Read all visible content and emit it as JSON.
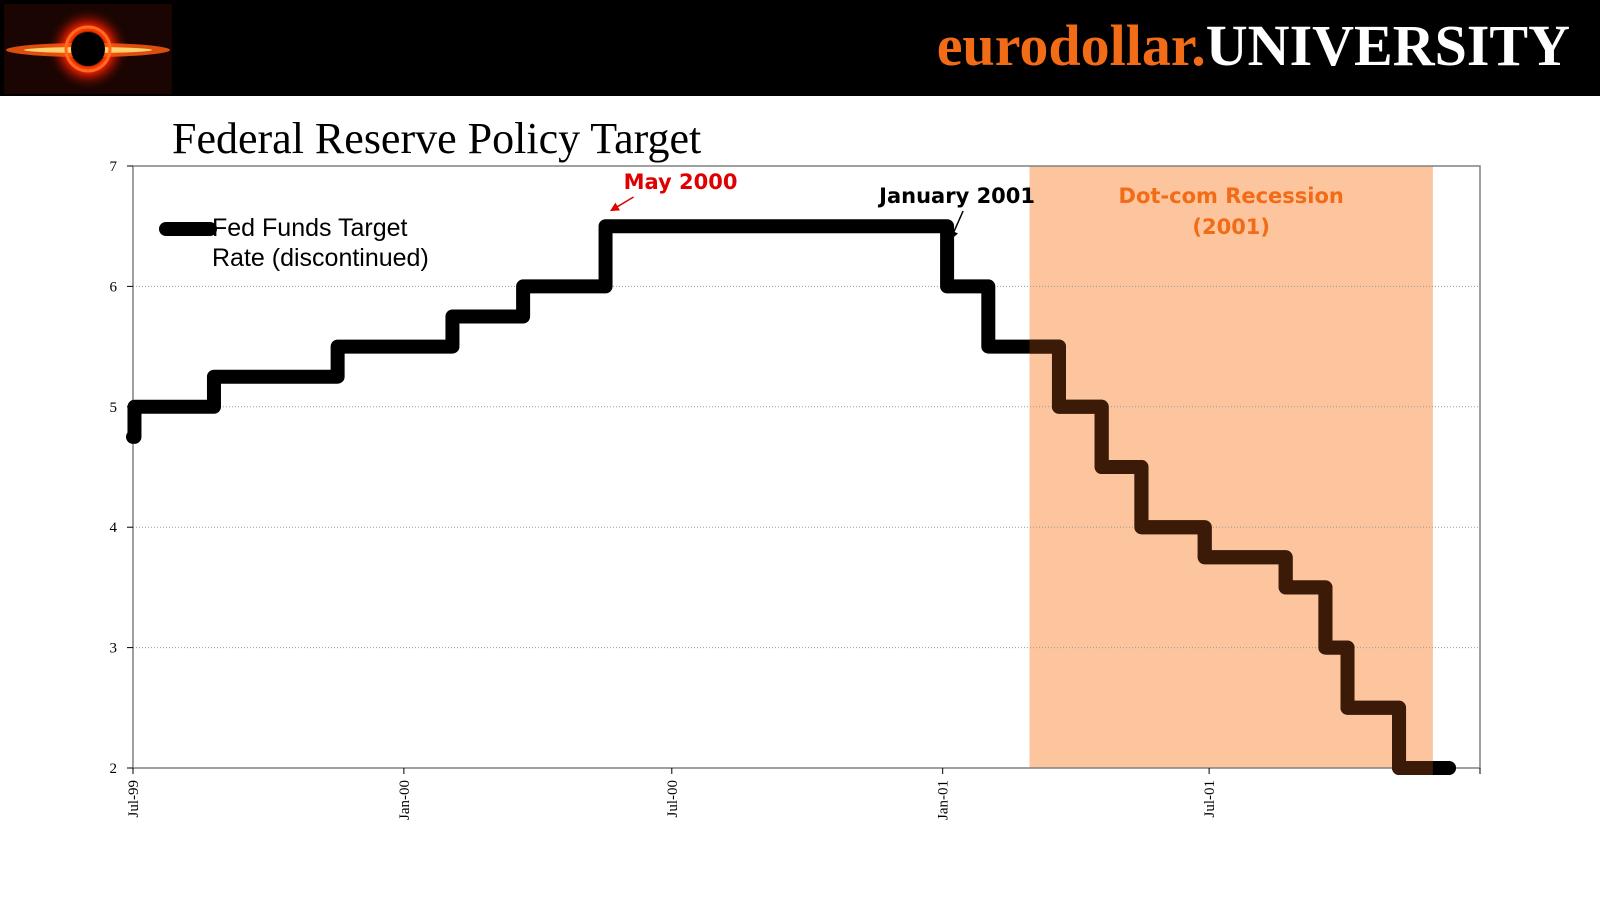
{
  "header": {
    "logo_icon": "black-hole-logo-icon",
    "brand_part1": "eurodollar.",
    "brand_part2": "UNIVERSITY",
    "brand_color_orange": "#f26b16",
    "brand_color_white": "#ffffff"
  },
  "chart_data": {
    "type": "line",
    "step": true,
    "title": "Federal Reserve Policy Target",
    "xlabel": "",
    "ylabel": "",
    "ylim": [
      2,
      7
    ],
    "yticks": [
      2,
      3,
      4,
      5,
      6,
      7
    ],
    "xticks": [
      {
        "label": "Jul-99",
        "date": "1999-07-01"
      },
      {
        "label": "Jan-00",
        "date": "2000-01-01"
      },
      {
        "label": "Jul-00",
        "date": "2000-07-01"
      },
      {
        "label": "Jan-01",
        "date": "2001-01-01"
      },
      {
        "label": "Jul-01",
        "date": "2001-07-01"
      }
    ],
    "xlim": [
      "1999-07-01",
      "2002-01-01"
    ],
    "grid": true,
    "series": [
      {
        "name": "Fed Funds Target Rate (discontinued)",
        "legend_line1": "Fed Funds Target",
        "legend_line2": "Rate (discontinued)",
        "color": "#000000",
        "points": [
          {
            "date": "1999-07-01",
            "value": 4.75
          },
          {
            "date": "1999-07-02",
            "value": 5.0
          },
          {
            "date": "1999-08-25",
            "value": 5.25
          },
          {
            "date": "1999-11-17",
            "value": 5.5
          },
          {
            "date": "2000-02-03",
            "value": 5.75
          },
          {
            "date": "2000-03-22",
            "value": 6.0
          },
          {
            "date": "2000-05-17",
            "value": 6.5
          },
          {
            "date": "2001-01-04",
            "value": 6.0
          },
          {
            "date": "2001-02-01",
            "value": 5.5
          },
          {
            "date": "2001-03-21",
            "value": 5.0
          },
          {
            "date": "2001-04-19",
            "value": 4.5
          },
          {
            "date": "2001-05-16",
            "value": 4.0
          },
          {
            "date": "2001-06-28",
            "value": 3.75
          },
          {
            "date": "2001-08-22",
            "value": 3.5
          },
          {
            "date": "2001-09-18",
            "value": 3.0
          },
          {
            "date": "2001-10-03",
            "value": 2.5
          },
          {
            "date": "2001-11-07",
            "value": 2.0
          },
          {
            "date": "2001-12-11",
            "value": 2.0
          }
        ]
      }
    ],
    "shaded_region": {
      "label_line1": "Dot-com Recession",
      "label_line2": "(2001)",
      "start": "2001-03-01",
      "end": "2001-11-30",
      "color": "#fcc59e",
      "label_color": "#f26b16"
    },
    "annotations": [
      {
        "text": "May 2000",
        "date": "2000-05-17",
        "value": 6.5,
        "color": "#e00000"
      },
      {
        "text": "January 2001",
        "date": "2001-01-04",
        "value": 6.5,
        "color": "#000000"
      }
    ],
    "legend_position": "top-left"
  }
}
